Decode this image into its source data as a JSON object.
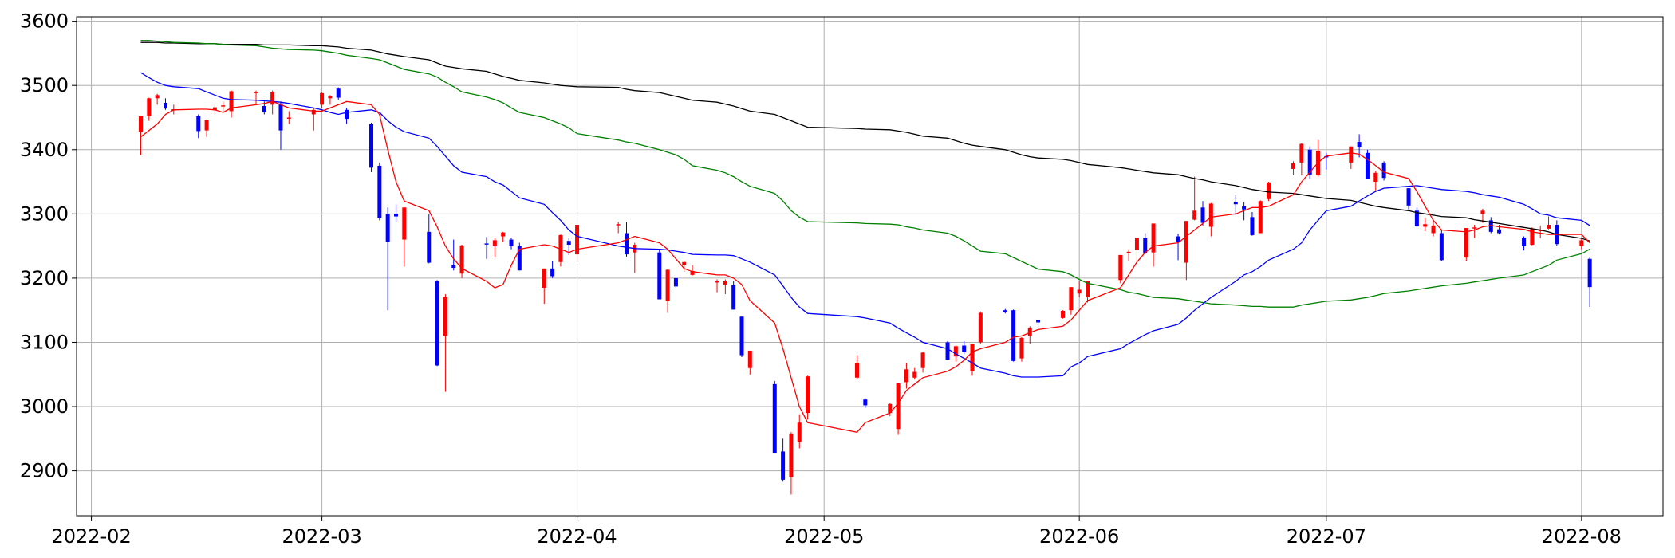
{
  "chart_data": {
    "type": "candlestick",
    "x": [
      19030,
      19031,
      19032,
      19033,
      19034,
      19037,
      19038,
      19039,
      19040,
      19041,
      19044,
      19045,
      19046,
      19047,
      19048,
      19051,
      19052,
      19053,
      19054,
      19055,
      19058,
      19059,
      19060,
      19061,
      19062,
      19065,
      19066,
      19067,
      19068,
      19069,
      19072,
      19073,
      19074,
      19075,
      19076,
      19079,
      19080,
      19081,
      19082,
      19083,
      19088,
      19089,
      19090,
      19093,
      19094,
      19095,
      19096,
      19097,
      19100,
      19101,
      19102,
      19103,
      19104,
      19107,
      19108,
      19109,
      19110,
      19111,
      19117,
      19118,
      19121,
      19122,
      19123,
      19124,
      19125,
      19128,
      19129,
      19130,
      19131,
      19132,
      19135,
      19136,
      19137,
      19138,
      19139,
      19142,
      19143,
      19144,
      19145,
      19149,
      19150,
      19151,
      19152,
      19153,
      19156,
      19157,
      19158,
      19159,
      19160,
      19163,
      19164,
      19165,
      19166,
      19167,
      19170,
      19171,
      19172,
      19173,
      19174,
      19177,
      19178,
      19179,
      19180,
      19181,
      19184,
      19185,
      19186,
      19187,
      19188,
      19191,
      19192,
      19193,
      19194,
      19195,
      19198,
      19199,
      19200,
      19201,
      19202,
      19205,
      19206
    ],
    "open": [
      3428,
      3452,
      3480,
      3473,
      3462,
      3452,
      3430,
      3462,
      3468,
      3460,
      3488,
      3468,
      3470,
      3472,
      3450,
      3455,
      3470,
      3480,
      3495,
      3462,
      3440,
      3375,
      3300,
      3300,
      3260,
      3272,
      3195,
      3110,
      3220,
      3207,
      3254,
      3250,
      3265,
      3260,
      3250,
      3185,
      3215,
      3225,
      3258,
      3237,
      3283,
      3270,
      3240,
      3240,
      3164,
      3200,
      3220,
      3205,
      3195,
      3190,
      3190,
      3140,
      3060,
      3035,
      2930,
      2890,
      2945,
      2990,
      3045,
      3011,
      2990,
      2965,
      3038,
      3045,
      3060,
      3100,
      3078,
      3095,
      3055,
      3100,
      3150,
      3150,
      3075,
      3110,
      3135,
      3138,
      3150,
      3176,
      3170,
      3197,
      3240,
      3244,
      3262,
      3240,
      3265,
      3224,
      3291,
      3310,
      3280,
      3319,
      3312,
      3295,
      3270,
      3323,
      3370,
      3380,
      3400,
      3360,
      3390,
      3380,
      3412,
      3395,
      3350,
      3380,
      3340,
      3305,
      3280,
      3270,
      3270,
      3232,
      3279,
      3300,
      3290,
      3276,
      3263,
      3252,
      3275,
      3277,
      3283,
      3250,
      3230
    ],
    "high": [
      3453,
      3481,
      3487,
      3480,
      3470,
      3455,
      3447,
      3470,
      3475,
      3492,
      3492,
      3475,
      3492,
      3475,
      3460,
      3465,
      3490,
      3485,
      3497,
      3465,
      3442,
      3380,
      3310,
      3315,
      3310,
      3300,
      3197,
      3175,
      3260,
      3252,
      3264,
      3263,
      3272,
      3263,
      3255,
      3215,
      3226,
      3268,
      3262,
      3283,
      3288,
      3287,
      3255,
      3245,
      3214,
      3204,
      3226,
      3220,
      3198,
      3198,
      3195,
      3140,
      3087,
      3040,
      2950,
      2960,
      2988,
      3048,
      3080,
      3013,
      3005,
      3036,
      3068,
      3060,
      3085,
      3102,
      3095,
      3102,
      3098,
      3148,
      3152,
      3151,
      3108,
      3125,
      3135,
      3150,
      3186,
      3195,
      3196,
      3236,
      3245,
      3263,
      3270,
      3285,
      3269,
      3289,
      3358,
      3320,
      3317,
      3330,
      3319,
      3303,
      3321,
      3350,
      3382,
      3410,
      3405,
      3415,
      3395,
      3405,
      3424,
      3400,
      3367,
      3382,
      3340,
      3310,
      3293,
      3289,
      3275,
      3278,
      3283,
      3308,
      3295,
      3283,
      3265,
      3279,
      3282,
      3296,
      3290,
      3262,
      3232
    ],
    "low": [
      3391,
      3445,
      3470,
      3462,
      3455,
      3418,
      3420,
      3455,
      3460,
      3450,
      3470,
      3455,
      3455,
      3400,
      3440,
      3430,
      3465,
      3470,
      3478,
      3440,
      3365,
      3290,
      3150,
      3287,
      3218,
      3223,
      3063,
      3023,
      3212,
      3200,
      3230,
      3232,
      3256,
      3245,
      3212,
      3160,
      3200,
      3218,
      3236,
      3225,
      3270,
      3233,
      3208,
      3167,
      3146,
      3185,
      3210,
      3204,
      3178,
      3175,
      3151,
      3077,
      3050,
      2928,
      2883,
      2863,
      2935,
      2980,
      3043,
      2998,
      2985,
      2956,
      3028,
      3042,
      3053,
      3073,
      3070,
      3082,
      3048,
      3097,
      3145,
      3070,
      3070,
      3097,
      3121,
      3137,
      3143,
      3170,
      3162,
      3192,
      3226,
      3222,
      3237,
      3218,
      3228,
      3197,
      3290,
      3282,
      3265,
      3298,
      3290,
      3266,
      3270,
      3320,
      3360,
      3360,
      3355,
      3358,
      3369,
      3370,
      3388,
      3355,
      3336,
      3352,
      3307,
      3279,
      3273,
      3265,
      3227,
      3227,
      3262,
      3286,
      3270,
      3268,
      3243,
      3251,
      3262,
      3276,
      3250,
      3245,
      3155
    ],
    "close": [
      3452,
      3480,
      3485,
      3464,
      3463,
      3429,
      3446,
      3466,
      3469,
      3491,
      3490,
      3458,
      3490,
      3430,
      3450,
      3462,
      3488,
      3484,
      3481,
      3448,
      3372,
      3293,
      3256,
      3296,
      3310,
      3224,
      3064,
      3171,
      3216,
      3251,
      3253,
      3259,
      3271,
      3250,
      3212,
      3215,
      3203,
      3267,
      3252,
      3283,
      3284,
      3237,
      3252,
      3167,
      3213,
      3187,
      3225,
      3211,
      3195,
      3195,
      3151,
      3080,
      3087,
      2928,
      2886,
      2958,
      2975,
      3047,
      3068,
      3002,
      3004,
      3036,
      3058,
      3054,
      3084,
      3073,
      3094,
      3085,
      3097,
      3146,
      3147,
      3071,
      3107,
      3123,
      3131,
      3149,
      3186,
      3182,
      3195,
      3236,
      3241,
      3263,
      3239,
      3285,
      3256,
      3289,
      3305,
      3286,
      3316,
      3315,
      3307,
      3267,
      3320,
      3349,
      3379,
      3409,
      3361,
      3398,
      3388,
      3405,
      3404,
      3355,
      3364,
      3356,
      3313,
      3281,
      3284,
      3282,
      3228,
      3278,
      3279,
      3305,
      3272,
      3270,
      3250,
      3277,
      3275,
      3283,
      3253,
      3259,
      3186
    ],
    "up_color": "red",
    "down_color": "blue",
    "ma_lines": [
      {
        "color": "#000000",
        "values": [
          3567,
          3567,
          3567,
          3566,
          3566,
          3565,
          3565,
          3565,
          3564,
          3564,
          3564,
          3563,
          3563,
          3563,
          3563,
          3562,
          3562,
          3561,
          3560,
          3558,
          3555,
          3552,
          3549,
          3547,
          3545,
          3540,
          3535,
          3530,
          3528,
          3526,
          3522,
          3518,
          3514,
          3511,
          3508,
          3504,
          3502,
          3500,
          3499,
          3498,
          3497,
          3494,
          3492,
          3489,
          3486,
          3483,
          3480,
          3477,
          3474,
          3471,
          3468,
          3464,
          3460,
          3455,
          3450,
          3445,
          3440,
          3435,
          3433,
          3432,
          3431,
          3429,
          3427,
          3424,
          3421,
          3418,
          3414,
          3410,
          3407,
          3405,
          3400,
          3396,
          3392,
          3389,
          3387,
          3385,
          3383,
          3380,
          3377,
          3372,
          3370,
          3368,
          3366,
          3364,
          3361,
          3358,
          3355,
          3353,
          3350,
          3344,
          3341,
          3338,
          3336,
          3334,
          3332,
          3330,
          3328,
          3326,
          3324,
          3321,
          3318,
          3315,
          3312,
          3310,
          3305,
          3302,
          3300,
          3298,
          3296,
          3294,
          3291,
          3289,
          3287,
          3285,
          3279,
          3277,
          3275,
          3272,
          3268,
          3262,
          3258
        ]
      },
      {
        "color": "#008000",
        "values": [
          3570,
          3570,
          3569,
          3568,
          3567,
          3566,
          3565,
          3565,
          3564,
          3563,
          3562,
          3560,
          3558,
          3557,
          3556,
          3555,
          3554,
          3552,
          3550,
          3547,
          3542,
          3540,
          3535,
          3530,
          3525,
          3518,
          3513,
          3505,
          3498,
          3490,
          3482,
          3478,
          3473,
          3465,
          3458,
          3450,
          3445,
          3440,
          3434,
          3425,
          3415,
          3412,
          3410,
          3400,
          3396,
          3392,
          3385,
          3375,
          3368,
          3364,
          3358,
          3350,
          3343,
          3332,
          3320,
          3305,
          3295,
          3288,
          3286,
          3285,
          3284,
          3283,
          3280,
          3278,
          3275,
          3270,
          3265,
          3258,
          3250,
          3242,
          3238,
          3232,
          3226,
          3220,
          3214,
          3210,
          3205,
          3198,
          3192,
          3182,
          3178,
          3176,
          3173,
          3170,
          3168,
          3166,
          3164,
          3162,
          3160,
          3158,
          3157,
          3156,
          3156,
          3155,
          3155,
          3158,
          3160,
          3162,
          3164,
          3166,
          3168,
          3170,
          3173,
          3176,
          3180,
          3182,
          3184,
          3186,
          3188,
          3192,
          3194,
          3196,
          3198,
          3200,
          3205,
          3210,
          3215,
          3220,
          3228,
          3238,
          3245
        ]
      },
      {
        "color": "#0000ff",
        "values": [
          3520,
          3512,
          3505,
          3500,
          3498,
          3495,
          3490,
          3485,
          3480,
          3478,
          3477,
          3476,
          3475,
          3474,
          3472,
          3465,
          3462,
          3458,
          3455,
          3458,
          3462,
          3458,
          3445,
          3435,
          3428,
          3418,
          3405,
          3390,
          3375,
          3365,
          3358,
          3350,
          3345,
          3335,
          3325,
          3315,
          3302,
          3290,
          3275,
          3265,
          3250,
          3248,
          3246,
          3245,
          3244,
          3242,
          3240,
          3237,
          3236,
          3236,
          3235,
          3230,
          3225,
          3205,
          3188,
          3170,
          3155,
          3145,
          3140,
          3138,
          3130,
          3122,
          3115,
          3108,
          3100,
          3090,
          3082,
          3075,
          3068,
          3060,
          3052,
          3048,
          3046,
          3046,
          3046,
          3048,
          3062,
          3068,
          3078,
          3090,
          3098,
          3105,
          3112,
          3118,
          3128,
          3138,
          3150,
          3160,
          3170,
          3195,
          3205,
          3210,
          3218,
          3228,
          3245,
          3255,
          3275,
          3290,
          3305,
          3312,
          3320,
          3328,
          3335,
          3340,
          3343,
          3344,
          3342,
          3340,
          3338,
          3335,
          3333,
          3330,
          3328,
          3326,
          3315,
          3308,
          3300,
          3298,
          3294,
          3290,
          3282
        ]
      },
      {
        "color": "#ff0000",
        "values": [
          3420,
          3430,
          3440,
          3455,
          3462,
          3463,
          3463,
          3462,
          3458,
          3465,
          3470,
          3472,
          3475,
          3470,
          3465,
          3460,
          3460,
          3465,
          3470,
          3475,
          3470,
          3455,
          3400,
          3350,
          3320,
          3305,
          3280,
          3250,
          3230,
          3215,
          3195,
          3185,
          3190,
          3220,
          3245,
          3252,
          3250,
          3245,
          3240,
          3245,
          3255,
          3260,
          3265,
          3255,
          3245,
          3230,
          3215,
          3210,
          3205,
          3205,
          3200,
          3190,
          3165,
          3130,
          3090,
          3045,
          3000,
          2975,
          2960,
          2975,
          2990,
          3005,
          3025,
          3035,
          3045,
          3055,
          3062,
          3072,
          3085,
          3090,
          3100,
          3108,
          3110,
          3115,
          3120,
          3125,
          3135,
          3150,
          3165,
          3185,
          3205,
          3225,
          3240,
          3250,
          3255,
          3265,
          3275,
          3285,
          3295,
          3300,
          3305,
          3310,
          3310,
          3312,
          3330,
          3350,
          3365,
          3380,
          3390,
          3395,
          3393,
          3385,
          3375,
          3365,
          3355,
          3335,
          3312,
          3290,
          3275,
          3272,
          3275,
          3280,
          3282,
          3280,
          3276,
          3272,
          3270,
          3268,
          3268,
          3268,
          3255
        ]
      }
    ],
    "xlim": [
      19022.2,
      19214.9
    ],
    "xticks": [
      {
        "value": 19024,
        "label": "2022-02"
      },
      {
        "value": 19052,
        "label": "2022-03"
      },
      {
        "value": 19083,
        "label": "2022-04"
      },
      {
        "value": 19113,
        "label": "2022-05"
      },
      {
        "value": 19144,
        "label": "2022-06"
      },
      {
        "value": 19174,
        "label": "2022-07"
      },
      {
        "value": 19205,
        "label": "2022-08"
      }
    ],
    "ylim": [
      2830,
      3607
    ],
    "yticks": [
      2900,
      3000,
      3100,
      3200,
      3300,
      3400,
      3500,
      3600
    ],
    "grid": true
  }
}
